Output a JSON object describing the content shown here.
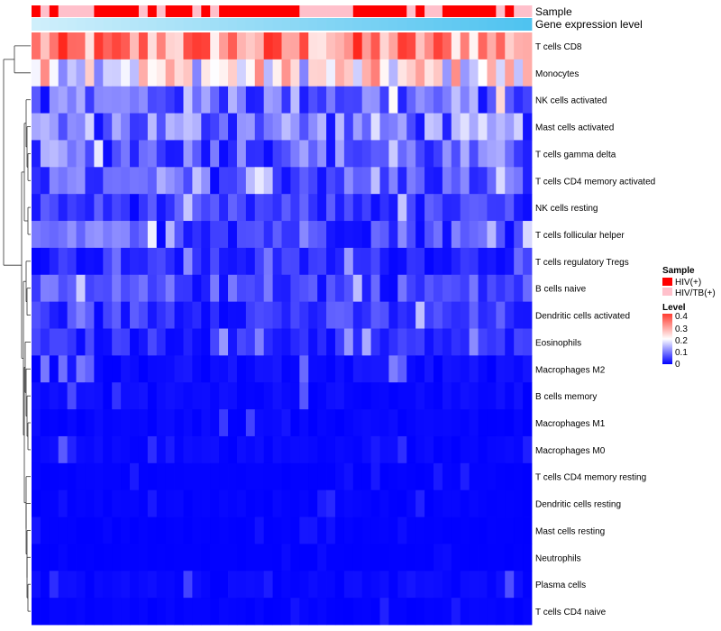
{
  "chart_data": {
    "type": "heatmap",
    "title": "",
    "annotation_labels": [
      "Sample",
      "Gene expression level"
    ],
    "legend": {
      "sample_title": "Sample",
      "sample_entries": [
        {
          "label": "HIV(+)",
          "color": "#ff0000"
        },
        {
          "label": "HIV/TB(+)",
          "color": "#ffc0cb"
        }
      ],
      "level_title": "Level",
      "level_ticks": [
        "0.4",
        "0.3",
        "0.2",
        "0.1",
        "0"
      ],
      "level_range": [
        0,
        0.4
      ]
    },
    "colors": {
      "low": "#0000ff",
      "mid": "#ffffff",
      "high": "#ff0000",
      "hiv": "#ff0000",
      "hivtb": "#ffc0cb",
      "expr_low": "#cfeffb",
      "expr_high": "#4fc3f0"
    },
    "sample_groups": [
      1,
      0,
      1,
      0,
      0,
      0,
      0,
      1,
      1,
      1,
      1,
      1,
      0,
      1,
      0,
      1,
      1,
      1,
      0,
      1,
      0,
      1,
      1,
      1,
      1,
      1,
      1,
      1,
      1,
      1,
      0,
      0,
      0,
      0,
      0,
      0,
      1,
      1,
      1,
      1,
      1,
      1,
      0,
      1,
      0,
      0,
      1,
      1,
      1,
      1,
      1,
      1,
      0,
      1,
      0,
      0
    ],
    "rows": [
      "T cells CD8",
      "Monocytes",
      "NK cells activated",
      "Mast cells activated",
      "T cells gamma delta",
      "T cells CD4 memory activated",
      "NK cells resting",
      "T cells follicular helper",
      "T cells regulatory  Tregs",
      "B cells naive",
      "Dendritic cells activated",
      "Eosinophils",
      "Macrophages M2",
      "B cells memory",
      "Macrophages M1",
      "Macrophages M0",
      "T cells CD4 memory resting",
      "Dendritic cells resting",
      "Mast cells resting",
      "Neutrophils",
      "Plasma cells",
      "T cells CD4 naive"
    ],
    "row_means": [
      0.3,
      0.21,
      0.08,
      0.09,
      0.07,
      0.06,
      0.04,
      0.06,
      0.03,
      0.05,
      0.04,
      0.03,
      0.02,
      0.015,
      0.01,
      0.012,
      0.004,
      0.006,
      0.003,
      0.002,
      0.012,
      0.006
    ],
    "n_samples": 56
  }
}
